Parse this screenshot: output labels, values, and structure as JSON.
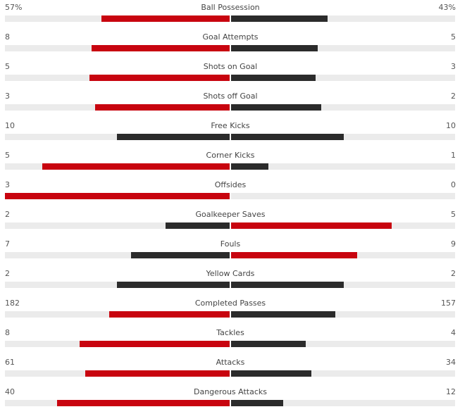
{
  "colors": {
    "winner": "#c8040f",
    "loser": "#2b2b2b",
    "track": "#ebebeb"
  },
  "stats": [
    {
      "label": "Ball Possession",
      "home": "57%",
      "away": "43%",
      "home_num": 57,
      "away_num": 43
    },
    {
      "label": "Goal Attempts",
      "home": "8",
      "away": "5",
      "home_num": 8,
      "away_num": 5
    },
    {
      "label": "Shots on Goal",
      "home": "5",
      "away": "3",
      "home_num": 5,
      "away_num": 3
    },
    {
      "label": "Shots off Goal",
      "home": "3",
      "away": "2",
      "home_num": 3,
      "away_num": 2
    },
    {
      "label": "Free Kicks",
      "home": "10",
      "away": "10",
      "home_num": 10,
      "away_num": 10
    },
    {
      "label": "Corner Kicks",
      "home": "5",
      "away": "1",
      "home_num": 5,
      "away_num": 1
    },
    {
      "label": "Offsides",
      "home": "3",
      "away": "0",
      "home_num": 3,
      "away_num": 0
    },
    {
      "label": "Goalkeeper Saves",
      "home": "2",
      "away": "5",
      "home_num": 2,
      "away_num": 5
    },
    {
      "label": "Fouls",
      "home": "7",
      "away": "9",
      "home_num": 7,
      "away_num": 9
    },
    {
      "label": "Yellow Cards",
      "home": "2",
      "away": "2",
      "home_num": 2,
      "away_num": 2
    },
    {
      "label": "Completed Passes",
      "home": "182",
      "away": "157",
      "home_num": 182,
      "away_num": 157
    },
    {
      "label": "Tackles",
      "home": "8",
      "away": "4",
      "home_num": 8,
      "away_num": 4
    },
    {
      "label": "Attacks",
      "home": "61",
      "away": "34",
      "home_num": 61,
      "away_num": 34
    },
    {
      "label": "Dangerous Attacks",
      "home": "40",
      "away": "12",
      "home_num": 40,
      "away_num": 12
    }
  ]
}
